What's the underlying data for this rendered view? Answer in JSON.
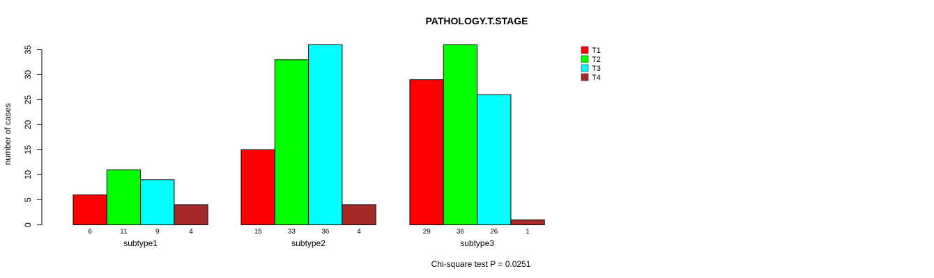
{
  "chart_data": {
    "type": "bar",
    "title": "PATHOLOGY.T.STAGE",
    "xlabel": "",
    "ylabel": "number of cases",
    "categories": [
      "subtype1",
      "subtype2",
      "subtype3"
    ],
    "series": [
      {
        "name": "T1",
        "color": "#ff0000",
        "values": [
          6,
          15,
          29
        ]
      },
      {
        "name": "T2",
        "color": "#00ff00",
        "values": [
          11,
          33,
          36
        ]
      },
      {
        "name": "T3",
        "color": "#00ffff",
        "values": [
          9,
          36,
          26
        ]
      },
      {
        "name": "T4",
        "color": "#a52a2a",
        "values": [
          4,
          4,
          1
        ]
      }
    ],
    "ylim": [
      0,
      36
    ],
    "yticks": [
      0,
      5,
      10,
      15,
      20,
      25,
      30,
      35
    ],
    "grid": false,
    "legend_position": "top-right",
    "annotation": "Chi-square test P = 0.0251"
  }
}
